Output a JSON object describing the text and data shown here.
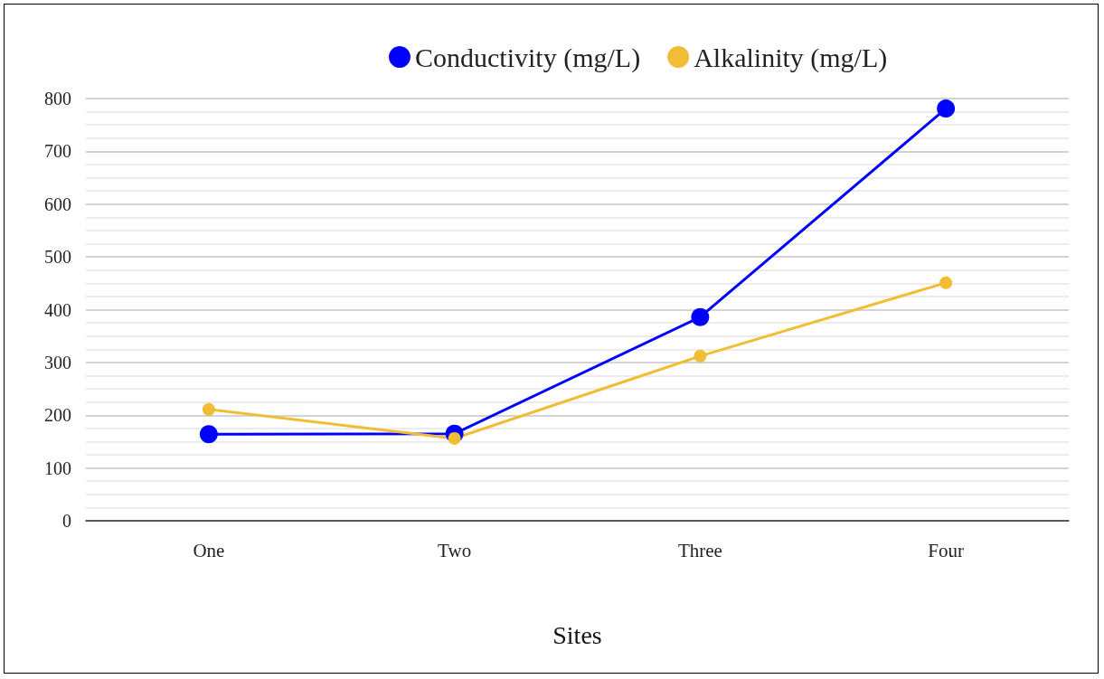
{
  "chart_data": {
    "type": "line",
    "xlabel": "Sites",
    "categories": [
      "One",
      "Two",
      "Three",
      "Four"
    ],
    "series": [
      {
        "name": "Conductivity (mg/L)",
        "color": "#0000ff",
        "values": [
          164,
          165,
          386,
          781
        ]
      },
      {
        "name": "Alkalinity (mg/L)",
        "color": "#f0bd35",
        "values": [
          211,
          156,
          312,
          451
        ]
      }
    ],
    "ylim": [
      0,
      800
    ],
    "yticks": [
      0,
      100,
      200,
      300,
      400,
      500,
      600,
      700,
      800
    ],
    "grid": "y",
    "legend": "top",
    "marker": "circle",
    "line_style": "solid"
  }
}
